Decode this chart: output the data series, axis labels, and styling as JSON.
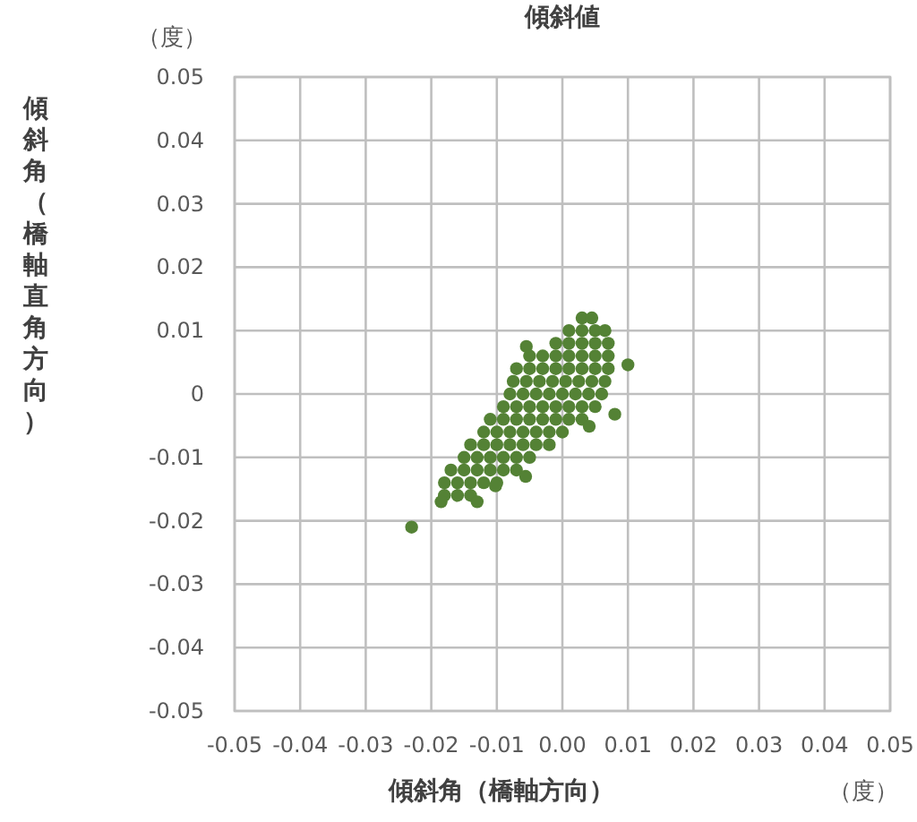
{
  "chart_data": {
    "type": "scatter",
    "title": "傾斜値",
    "xlabel": "傾斜角（橋軸方向）",
    "ylabel": "傾斜角（橋軸直角方向）",
    "annotations": [
      "（度）",
      "（度）"
    ],
    "xlim": [
      -0.05,
      0.05
    ],
    "ylim": [
      -0.05,
      0.05
    ],
    "xticks": [
      -0.05,
      -0.04,
      -0.03,
      -0.02,
      -0.01,
      {
        "value": 0,
        "label": "0.00"
      },
      0.01,
      0.02,
      0.03,
      0.04,
      0.05
    ],
    "yticks": [
      -0.05,
      -0.04,
      -0.03,
      -0.02,
      -0.01,
      0,
      0.01,
      0.02,
      0.03,
      0.04,
      0.05
    ],
    "grid": true,
    "marker": "circle",
    "series": [
      {
        "color": "#548235",
        "x": [
          -0.018,
          -0.016,
          -0.014,
          -0.018,
          -0.016,
          -0.014,
          -0.012,
          -0.01,
          -0.017,
          -0.015,
          -0.013,
          -0.011,
          -0.009,
          -0.007,
          -0.015,
          -0.013,
          -0.011,
          -0.009,
          -0.007,
          -0.005,
          -0.014,
          -0.012,
          -0.01,
          -0.008,
          -0.006,
          -0.004,
          -0.002,
          -0.012,
          -0.01,
          -0.008,
          -0.006,
          -0.004,
          -0.002,
          0.0,
          -0.011,
          -0.009,
          -0.007,
          -0.005,
          -0.003,
          -0.001,
          0.001,
          0.003,
          -0.009,
          -0.007,
          -0.005,
          -0.003,
          -0.001,
          0.001,
          0.003,
          0.005,
          -0.008,
          -0.006,
          -0.004,
          -0.002,
          0.0,
          0.002,
          0.004,
          0.006,
          -0.0075,
          -0.0055,
          -0.0035,
          -0.0015,
          0.0005,
          0.0025,
          0.0045,
          0.0065,
          -0.007,
          -0.005,
          -0.003,
          -0.001,
          0.001,
          0.003,
          0.005,
          0.007,
          -0.005,
          -0.003,
          -0.001,
          0.001,
          0.003,
          0.005,
          0.007,
          -0.001,
          0.001,
          0.003,
          0.005,
          0.007,
          0.001,
          0.003,
          0.005,
          0.0065,
          0.003,
          0.0045,
          -0.023,
          0.01,
          0.008,
          0.0041,
          -0.0056,
          -0.0102,
          -0.0185,
          -0.013,
          -0.0055
        ],
        "values": [
          -0.016,
          -0.016,
          -0.016,
          -0.014,
          -0.014,
          -0.014,
          -0.014,
          -0.014,
          -0.012,
          -0.012,
          -0.012,
          -0.012,
          -0.012,
          -0.012,
          -0.01,
          -0.01,
          -0.01,
          -0.01,
          -0.01,
          -0.01,
          -0.008,
          -0.008,
          -0.008,
          -0.008,
          -0.008,
          -0.008,
          -0.008,
          -0.006,
          -0.006,
          -0.006,
          -0.006,
          -0.006,
          -0.006,
          -0.006,
          -0.004,
          -0.004,
          -0.004,
          -0.004,
          -0.004,
          -0.004,
          -0.004,
          -0.004,
          -0.002,
          -0.002,
          -0.002,
          -0.002,
          -0.002,
          -0.002,
          -0.002,
          -0.002,
          0,
          0,
          0,
          0,
          0,
          0,
          0,
          0,
          0.002,
          0.002,
          0.002,
          0.002,
          0.002,
          0.002,
          0.002,
          0.002,
          0.004,
          0.004,
          0.004,
          0.004,
          0.004,
          0.004,
          0.004,
          0.004,
          0.006,
          0.006,
          0.006,
          0.006,
          0.006,
          0.006,
          0.006,
          0.008,
          0.008,
          0.008,
          0.008,
          0.008,
          0.01,
          0.01,
          0.01,
          0.01,
          0.012,
          0.012,
          -0.021,
          0.0046,
          -0.0032,
          -0.0051,
          -0.013,
          -0.0145,
          -0.017,
          -0.017,
          0.0075
        ]
      }
    ]
  }
}
